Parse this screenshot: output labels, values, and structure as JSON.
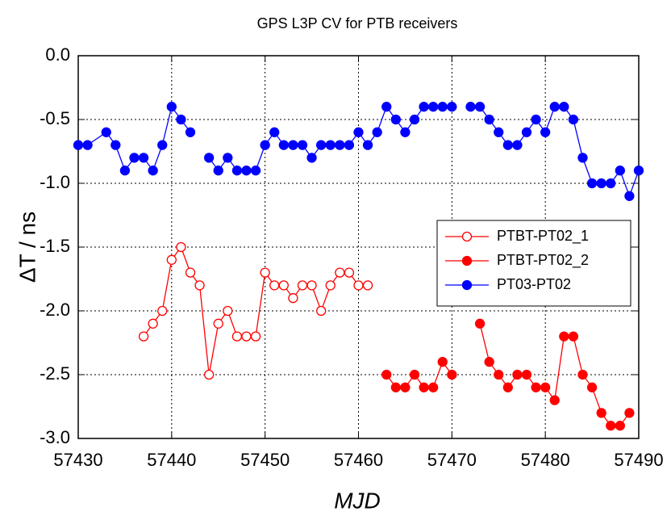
{
  "chart_data": {
    "type": "line",
    "title": "GPS L3P CV for PTB receivers",
    "xlabel": "MJD",
    "ylabel": "ΔT / ns",
    "xlim": [
      57430,
      57490
    ],
    "xticks": [
      57430,
      57440,
      57450,
      57460,
      57470,
      57480,
      57490
    ],
    "ylim": [
      -3.0,
      0.0
    ],
    "yticks": [
      {
        "value": 0,
        "label": "0.0"
      },
      -0.5,
      {
        "value": -1,
        "label": "-1.0"
      },
      -1.5,
      {
        "value": -2,
        "label": "-2.0"
      },
      -2.5,
      {
        "value": -3,
        "label": "-3.0"
      }
    ],
    "grid": true,
    "legend": "right",
    "series": [
      {
        "name": "PTBT-PT02_1",
        "color": "#ff0000",
        "marker": "open",
        "x": [
          57437,
          57438,
          57439,
          57440,
          57441,
          57442,
          57443,
          57444,
          57445,
          57446,
          57447,
          57448,
          57449,
          57450,
          57451,
          57452,
          57453,
          57454,
          57455,
          57456,
          57457,
          57458,
          57459,
          57460,
          57461
        ],
        "values": [
          -2.2,
          -2.1,
          -2.0,
          -1.6,
          -1.5,
          -1.7,
          -1.8,
          -2.5,
          -2.1,
          -2.0,
          -2.2,
          -2.2,
          -2.2,
          -1.7,
          -1.8,
          -1.8,
          -1.9,
          -1.8,
          -1.8,
          -2.0,
          -1.8,
          -1.7,
          -1.7,
          -1.8,
          -1.8
        ]
      },
      {
        "name": "PTBT-PT02_2",
        "color": "#ff0000",
        "marker": "filled",
        "x": [
          57463,
          57464,
          57465,
          57466,
          57467,
          57468,
          57469,
          57470,
          57471,
          57473,
          57474,
          57475,
          57476,
          57477,
          57478,
          57479,
          57480,
          57481,
          57482,
          57483,
          57484,
          57485,
          57486,
          57487,
          57488,
          57489
        ],
        "values": [
          -2.5,
          -2.6,
          -2.6,
          -2.5,
          -2.6,
          -2.6,
          -2.4,
          -2.5,
          null,
          -2.1,
          -2.4,
          -2.5,
          -2.6,
          -2.5,
          -2.5,
          -2.6,
          -2.6,
          -2.7,
          -2.2,
          -2.2,
          -2.5,
          -2.6,
          -2.8,
          -2.9,
          -2.9,
          -2.8
        ]
      },
      {
        "name": "PT03-PT02",
        "color": "#0000ff",
        "marker": "filled",
        "x": [
          57430,
          57431,
          57433,
          57434,
          57435,
          57436,
          57437,
          57438,
          57439,
          57440,
          57441,
          57442,
          57443,
          57444,
          57445,
          57446,
          57447,
          57448,
          57449,
          57450,
          57451,
          57452,
          57453,
          57454,
          57455,
          57456,
          57457,
          57458,
          57459,
          57460,
          57461,
          57462,
          57463,
          57464,
          57465,
          57466,
          57467,
          57468,
          57469,
          57470,
          57471,
          57472,
          57473,
          57474,
          57475,
          57476,
          57477,
          57478,
          57479,
          57480,
          57481,
          57482,
          57483,
          57484,
          57485,
          57486,
          57487,
          57488,
          57489,
          57490
        ],
        "values": [
          -0.7,
          -0.7,
          -0.6,
          -0.7,
          -0.9,
          -0.8,
          -0.8,
          -0.9,
          -0.7,
          -0.4,
          -0.5,
          -0.6,
          null,
          -0.8,
          -0.9,
          -0.8,
          -0.9,
          -0.9,
          -0.9,
          -0.7,
          -0.6,
          -0.7,
          -0.7,
          -0.7,
          -0.8,
          -0.7,
          -0.7,
          -0.7,
          -0.7,
          -0.6,
          -0.7,
          -0.6,
          -0.4,
          -0.5,
          -0.6,
          -0.5,
          -0.4,
          -0.4,
          -0.4,
          -0.4,
          null,
          -0.4,
          -0.4,
          -0.5,
          -0.6,
          -0.7,
          -0.7,
          -0.6,
          -0.5,
          -0.6,
          -0.4,
          -0.4,
          -0.5,
          -0.8,
          -1.0,
          -1.0,
          -1.0,
          -0.9,
          -1.1,
          -0.9
        ]
      }
    ]
  }
}
